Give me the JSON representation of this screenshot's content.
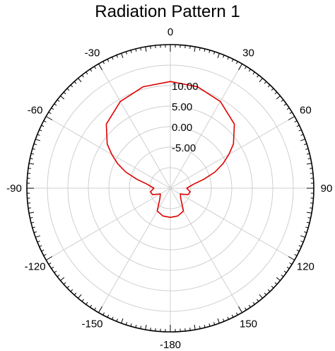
{
  "chart_data": {
    "type": "polar-line",
    "title": "Radiation Pattern 1",
    "angle_unit": "degrees",
    "angle_zero": "top",
    "angle_direction": "clockwise",
    "angle_ticks": [
      0,
      30,
      60,
      90,
      120,
      150,
      -180,
      -150,
      -120,
      -90,
      -60,
      -30
    ],
    "angle_tick_labels": [
      "0",
      "30",
      "60",
      "90",
      "120",
      "150",
      "-180",
      "-150",
      "-120",
      "-90",
      "-60",
      "-30"
    ],
    "radial_ticks": [
      -5,
      0,
      5,
      10
    ],
    "radial_tick_labels": [
      "-5.00",
      "0.00",
      "5.00",
      "10.00"
    ],
    "radial_range": [
      -15,
      20
    ],
    "grid": true,
    "legend": "none",
    "series": [
      {
        "color": "#e00000",
        "theta": [
          -180,
          -165,
          -150,
          -135,
          -120,
          -110,
          -100,
          -90,
          -80,
          -75,
          -70,
          -65,
          -60,
          -55,
          -45,
          -30,
          -15,
          0,
          15,
          30,
          45,
          55,
          60,
          65,
          70,
          75,
          80,
          90,
          100,
          110,
          120,
          135,
          150,
          165,
          180
        ],
        "r": [
          -7.9,
          -8.0,
          -8.6,
          -11.4,
          -12.2,
          -10.4,
          -10.1,
          -11.0,
          -9.2,
          -6.5,
          -3.4,
          -0.8,
          1.5,
          3.8,
          7.1,
          9.4,
          10.6,
          11.0,
          10.6,
          9.4,
          7.1,
          3.8,
          1.5,
          -0.8,
          -3.4,
          -6.5,
          -9.2,
          -11.0,
          -10.1,
          -10.4,
          -12.2,
          -11.4,
          -8.6,
          -8.0,
          -7.9
        ]
      }
    ]
  }
}
